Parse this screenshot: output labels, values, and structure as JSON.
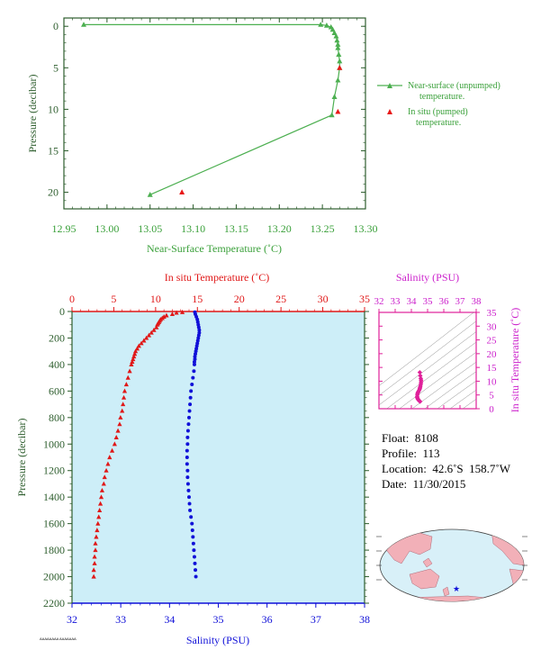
{
  "colors": {
    "near_surface": "#4caf50",
    "pumped": "#e81818",
    "temperature": "#e01818",
    "salinity": "#1010d8",
    "ts": "#e0209a",
    "axis_green": "#2e5e2e",
    "panel_bg": "#cdeef8",
    "map_land": "#f2b0b8",
    "map_ocean": "#d8f0f8"
  },
  "chart_data": [
    {
      "type": "line",
      "xlabel": "Near-Surface Temperature (˚C)",
      "ylabel": "Pressure (decibar)",
      "xlim": [
        12.95,
        13.3
      ],
      "ylim": [
        22,
        -1
      ],
      "xticks": [
        "12.95",
        "13.00",
        "13.05",
        "13.10",
        "13.15",
        "13.20",
        "13.25",
        "13.30"
      ],
      "yticks": [
        "0",
        "5",
        "10",
        "15",
        "20"
      ],
      "legend": [
        {
          "label_line1": "Near-surface (unpumped)",
          "label_line2": "temperature."
        },
        {
          "label_line1": "In situ (pumped)",
          "label_line2": "temperature."
        }
      ],
      "legend_position": "right",
      "series": [
        {
          "name": "Near-surface (unpumped) temperature.",
          "marker": "triangle",
          "points": [
            [
              12.973,
              -0.2
            ],
            [
              13.248,
              -0.2
            ],
            [
              13.255,
              -0.1
            ],
            [
              13.26,
              0.1
            ],
            [
              13.262,
              0.4
            ],
            [
              13.264,
              0.8
            ],
            [
              13.266,
              1.2
            ],
            [
              13.267,
              1.7
            ],
            [
              13.268,
              2.2
            ],
            [
              13.268,
              2.6
            ],
            [
              13.269,
              3.4
            ],
            [
              13.27,
              4.2
            ],
            [
              13.27,
              5.0
            ],
            [
              13.268,
              6.5
            ],
            [
              13.264,
              8.5
            ],
            [
              13.261,
              10.7
            ],
            [
              13.05,
              20.3
            ]
          ]
        },
        {
          "name": "In situ (pumped) temperature.",
          "marker": "triangle",
          "points": [
            [
              13.27,
              5.0
            ],
            [
              13.268,
              10.3
            ],
            [
              13.087,
              20.0
            ]
          ]
        }
      ]
    },
    {
      "type": "line",
      "xlabel": "Salinity (PSU)",
      "xlabel_top": "In situ Temperature (˚C)",
      "ylabel": "Pressure (decibar)",
      "salinity_lim": [
        32,
        38
      ],
      "temperature_lim": [
        0,
        35
      ],
      "ylim": [
        2200,
        0
      ],
      "salinity_ticks": [
        "32",
        "33",
        "34",
        "35",
        "36",
        "37",
        "38"
      ],
      "temperature_ticks": [
        "0",
        "5",
        "10",
        "15",
        "20",
        "25",
        "30",
        "35"
      ],
      "pressure_ticks": [
        "0",
        "200",
        "400",
        "600",
        "800",
        "1000",
        "1200",
        "1400",
        "1600",
        "1800",
        "2000",
        "2200"
      ],
      "temperature_profile": {
        "marker": "triangle",
        "points": [
          [
            13.2,
            5
          ],
          [
            12.5,
            10
          ],
          [
            12.0,
            20
          ],
          [
            11.3,
            30
          ],
          [
            11.0,
            40
          ],
          [
            10.8,
            50
          ],
          [
            10.6,
            60
          ],
          [
            10.5,
            70
          ],
          [
            10.4,
            80
          ],
          [
            10.3,
            90
          ],
          [
            10.2,
            100
          ],
          [
            10.1,
            120
          ],
          [
            9.8,
            140
          ],
          [
            9.5,
            160
          ],
          [
            9.2,
            180
          ],
          [
            8.9,
            200
          ],
          [
            8.6,
            220
          ],
          [
            8.3,
            240
          ],
          [
            8.0,
            260
          ],
          [
            7.8,
            280
          ],
          [
            7.6,
            300
          ],
          [
            7.5,
            320
          ],
          [
            7.4,
            340
          ],
          [
            7.3,
            360
          ],
          [
            7.2,
            380
          ],
          [
            7.1,
            400
          ],
          [
            6.9,
            450
          ],
          [
            6.7,
            500
          ],
          [
            6.5,
            550
          ],
          [
            6.3,
            600
          ],
          [
            6.2,
            650
          ],
          [
            6.1,
            700
          ],
          [
            6.0,
            750
          ],
          [
            5.8,
            800
          ],
          [
            5.7,
            850
          ],
          [
            5.5,
            900
          ],
          [
            5.3,
            950
          ],
          [
            5.1,
            1000
          ],
          [
            4.8,
            1050
          ],
          [
            4.5,
            1100
          ],
          [
            4.3,
            1150
          ],
          [
            4.1,
            1200
          ],
          [
            3.9,
            1250
          ],
          [
            3.8,
            1300
          ],
          [
            3.6,
            1350
          ],
          [
            3.5,
            1400
          ],
          [
            3.4,
            1450
          ],
          [
            3.3,
            1500
          ],
          [
            3.2,
            1550
          ],
          [
            3.1,
            1600
          ],
          [
            3.0,
            1650
          ],
          [
            2.9,
            1700
          ],
          [
            2.8,
            1750
          ],
          [
            2.8,
            1800
          ],
          [
            2.7,
            1850
          ],
          [
            2.7,
            1900
          ],
          [
            2.6,
            1950
          ],
          [
            2.6,
            2000
          ]
        ]
      },
      "salinity_profile": {
        "marker": "dot",
        "points": [
          [
            34.52,
            5
          ],
          [
            34.53,
            20
          ],
          [
            34.55,
            40
          ],
          [
            34.57,
            60
          ],
          [
            34.58,
            80
          ],
          [
            34.59,
            100
          ],
          [
            34.6,
            120
          ],
          [
            34.61,
            140
          ],
          [
            34.61,
            160
          ],
          [
            34.6,
            180
          ],
          [
            34.59,
            200
          ],
          [
            34.58,
            220
          ],
          [
            34.57,
            240
          ],
          [
            34.56,
            260
          ],
          [
            34.55,
            280
          ],
          [
            34.54,
            300
          ],
          [
            34.53,
            320
          ],
          [
            34.52,
            340
          ],
          [
            34.52,
            360
          ],
          [
            34.51,
            380
          ],
          [
            34.51,
            400
          ],
          [
            34.5,
            450
          ],
          [
            34.48,
            500
          ],
          [
            34.46,
            550
          ],
          [
            34.44,
            600
          ],
          [
            34.43,
            650
          ],
          [
            34.42,
            700
          ],
          [
            34.41,
            750
          ],
          [
            34.4,
            800
          ],
          [
            34.39,
            850
          ],
          [
            34.38,
            900
          ],
          [
            34.37,
            950
          ],
          [
            34.37,
            1000
          ],
          [
            34.36,
            1050
          ],
          [
            34.36,
            1100
          ],
          [
            34.36,
            1150
          ],
          [
            34.37,
            1200
          ],
          [
            34.37,
            1250
          ],
          [
            34.38,
            1300
          ],
          [
            34.39,
            1350
          ],
          [
            34.4,
            1400
          ],
          [
            34.41,
            1450
          ],
          [
            34.42,
            1500
          ],
          [
            34.44,
            1550
          ],
          [
            34.46,
            1600
          ],
          [
            34.47,
            1650
          ],
          [
            34.48,
            1700
          ],
          [
            34.49,
            1750
          ],
          [
            34.5,
            1800
          ],
          [
            34.51,
            1850
          ],
          [
            34.52,
            1900
          ],
          [
            34.53,
            1950
          ],
          [
            34.54,
            2000
          ]
        ]
      }
    },
    {
      "type": "scatter",
      "xlabel": "Salinity (PSU)",
      "ylabel": "In situ Temperature (˚C)",
      "xlim": [
        32,
        38
      ],
      "ylim": [
        0,
        35
      ],
      "xticks": [
        "32",
        "33",
        "34",
        "35",
        "36",
        "37",
        "38"
      ],
      "yticks": [
        "0",
        "5",
        "10",
        "15",
        "20",
        "25",
        "30",
        "35"
      ],
      "points": [
        [
          34.52,
          13.2
        ],
        [
          34.55,
          12.0
        ],
        [
          34.58,
          11.0
        ],
        [
          34.6,
          10.4
        ],
        [
          34.6,
          9.8
        ],
        [
          34.59,
          9.2
        ],
        [
          34.57,
          8.6
        ],
        [
          34.55,
          8.0
        ],
        [
          34.53,
          7.6
        ],
        [
          34.52,
          7.3
        ],
        [
          34.51,
          7.1
        ],
        [
          34.48,
          6.7
        ],
        [
          34.44,
          6.3
        ],
        [
          34.42,
          6.1
        ],
        [
          34.4,
          5.8
        ],
        [
          34.38,
          5.5
        ],
        [
          34.37,
          5.1
        ],
        [
          34.36,
          4.5
        ],
        [
          34.36,
          4.1
        ],
        [
          34.38,
          3.8
        ],
        [
          34.4,
          3.5
        ],
        [
          34.42,
          3.3
        ],
        [
          34.46,
          3.1
        ],
        [
          34.48,
          2.9
        ],
        [
          34.5,
          2.8
        ],
        [
          34.52,
          2.7
        ],
        [
          34.54,
          2.6
        ]
      ]
    }
  ],
  "info": {
    "float": "Float:  8108",
    "profile": "Profile:  113",
    "location": "Location:  42.6˚S  158.7˚W",
    "date": "Date:  11/30/2015"
  },
  "map": {
    "marker_icon": "star-icon"
  },
  "footnote": "AAAAAAAA AAAAAAA"
}
